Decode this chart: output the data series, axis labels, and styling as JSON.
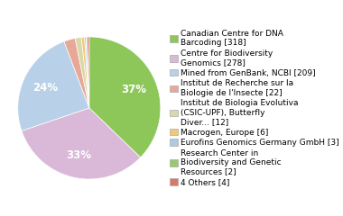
{
  "labels": [
    "Canadian Centre for DNA\nBarcoding [318]",
    "Centre for Biodiversity\nGenomics [278]",
    "Mined from GenBank, NCBI [209]",
    "Institut de Recherche sur la\nBiologie de l'Insecte [22]",
    "Institut de Biologia Evolutiva\n(CSIC-UPF), Butterfly\nDiver... [12]",
    "Macrogen, Europe [6]",
    "Eurofins Genomics Germany GmbH [3]",
    "Research Center in\nBiodiversity and Genetic\nResources [2]",
    "4 Others [4]"
  ],
  "values": [
    318,
    278,
    209,
    22,
    12,
    6,
    3,
    2,
    4
  ],
  "colors": [
    "#8dc75a",
    "#d9b8d8",
    "#b8d0e8",
    "#e8a898",
    "#d8d8a8",
    "#f0c878",
    "#b0c8e0",
    "#98c870",
    "#d87868"
  ],
  "background_color": "#ffffff",
  "text_color": "#ffffff",
  "legend_fontsize": 6.5,
  "pct_fontsize": 8.5
}
